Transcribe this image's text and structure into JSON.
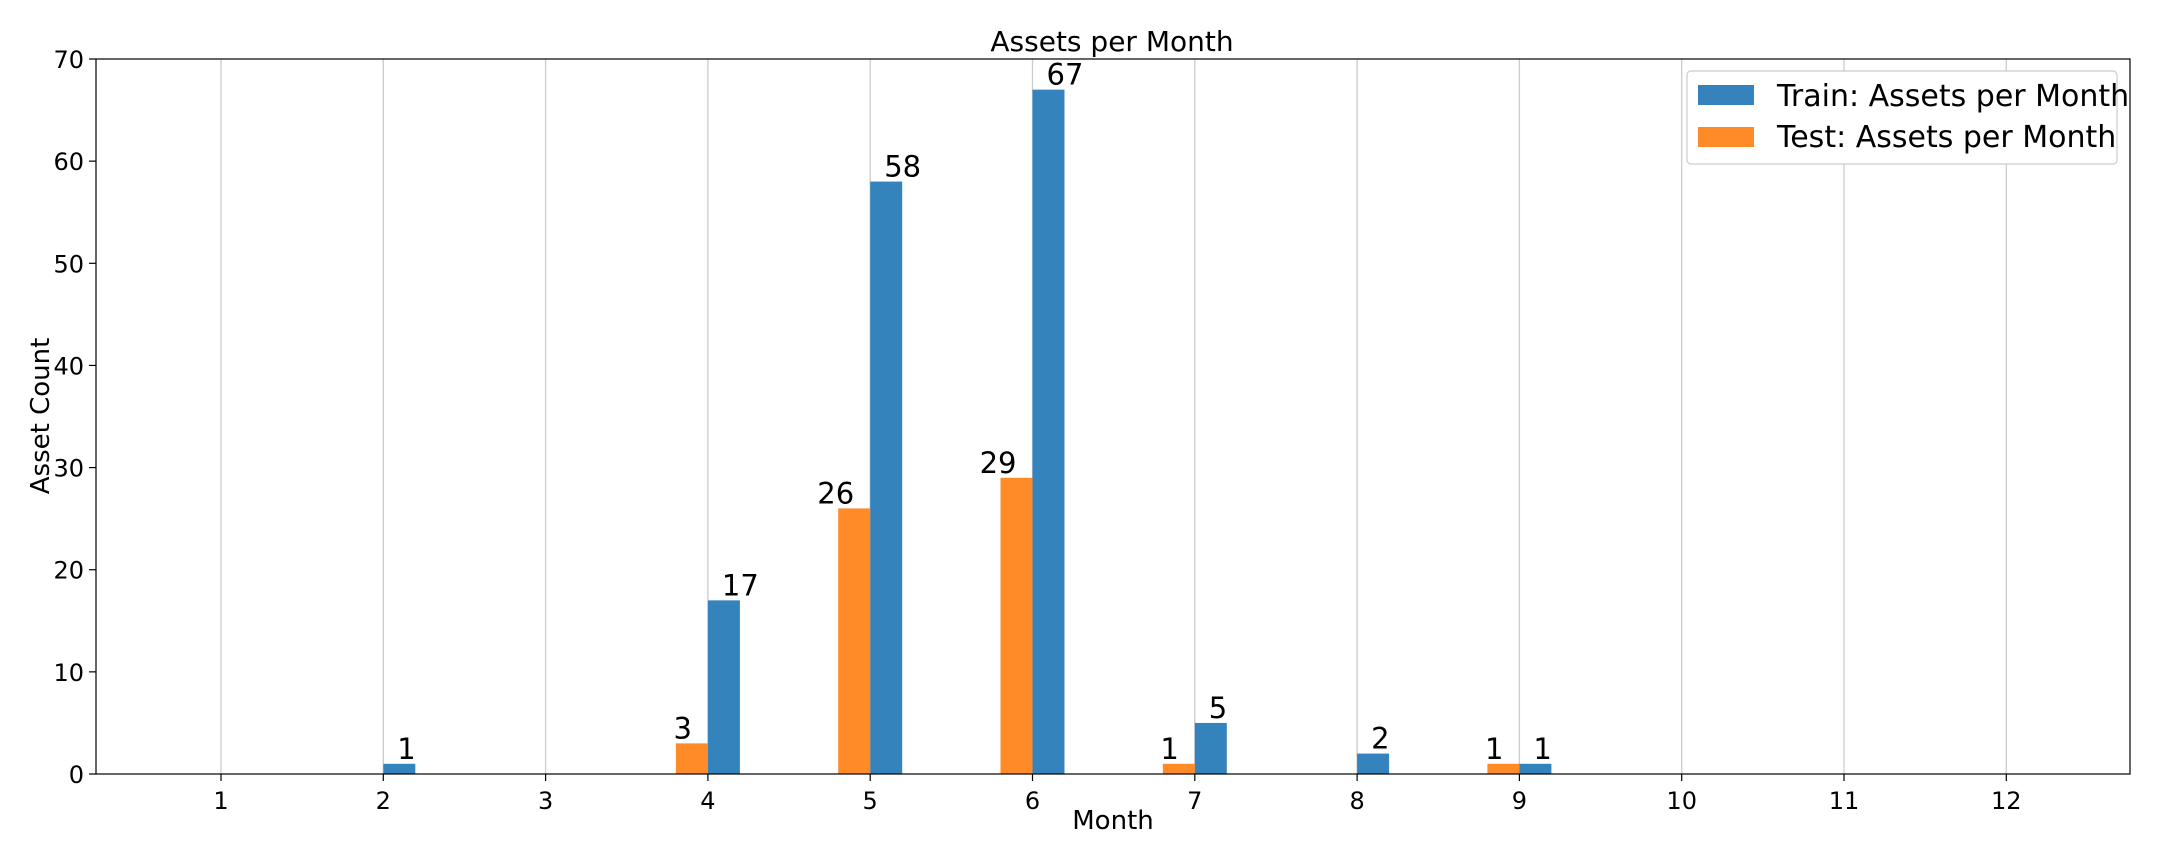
{
  "chart_data": {
    "type": "bar",
    "title": "Assets per Month",
    "xlabel": "Month",
    "ylabel": "Asset Count",
    "categories": [
      "1",
      "2",
      "3",
      "4",
      "5",
      "6",
      "7",
      "8",
      "9",
      "10",
      "11",
      "12"
    ],
    "series": [
      {
        "name": "Train: Assets per Month",
        "color": "#3483bd",
        "values": [
          0,
          1,
          0,
          17,
          58,
          67,
          5,
          2,
          1,
          0,
          0,
          0
        ],
        "labels": [
          "",
          "1",
          "",
          "17",
          "58",
          "67",
          "5",
          "2",
          "1",
          "",
          "",
          ""
        ]
      },
      {
        "name": "Test: Assets per Month",
        "color": "#fe8b28",
        "values": [
          0,
          0,
          0,
          3,
          26,
          29,
          1,
          0,
          1,
          0,
          0,
          0
        ],
        "labels": [
          "",
          "",
          "",
          "3",
          "26",
          "29",
          "1",
          "",
          "1",
          "",
          "",
          ""
        ]
      }
    ],
    "ylim": [
      0,
      70
    ],
    "yticks": [
      "0",
      "10",
      "20",
      "30",
      "40",
      "50",
      "60",
      "70"
    ],
    "grid": "vertical",
    "legend": "top-right"
  }
}
